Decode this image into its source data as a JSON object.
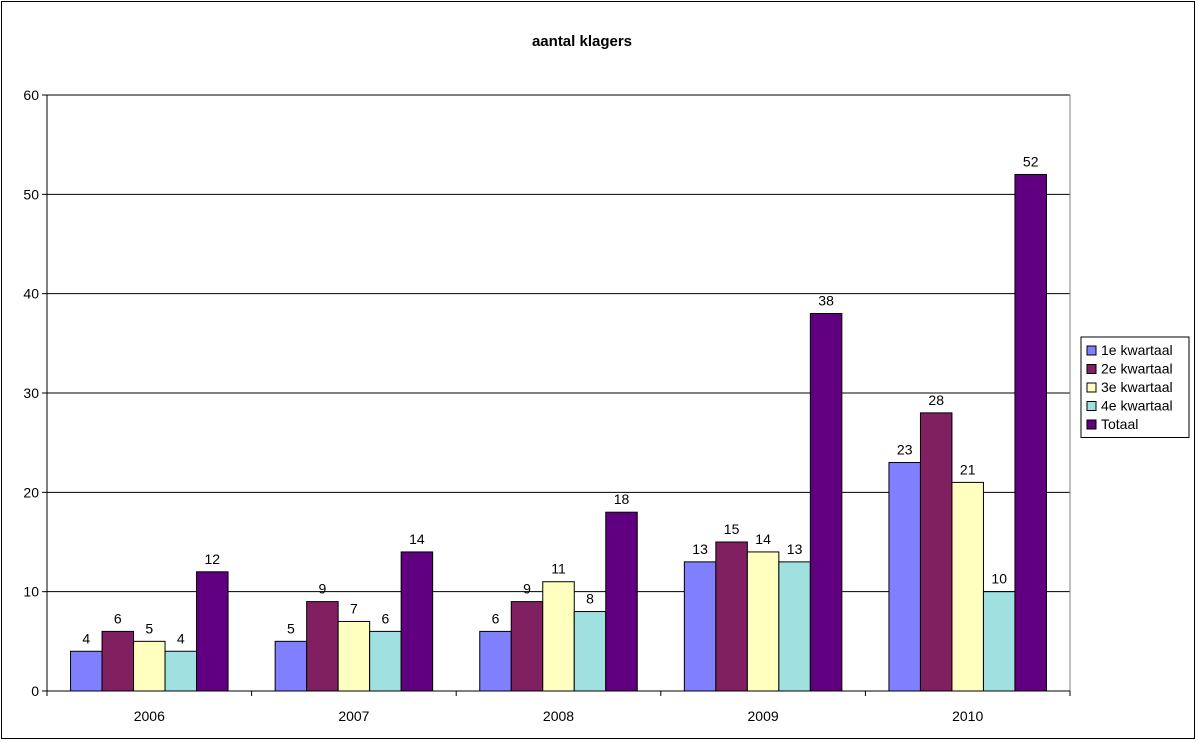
{
  "chart_data": {
    "type": "bar",
    "title": "aantal klagers",
    "xlabel": "",
    "ylabel": "",
    "categories": [
      "2006",
      "2007",
      "2008",
      "2009",
      "2010"
    ],
    "ylim": [
      0,
      60
    ],
    "yticks": [
      0,
      10,
      20,
      30,
      40,
      50,
      60
    ],
    "grid": true,
    "legend_position": "right",
    "series": [
      {
        "name": "1e kwartaal",
        "color": "#8080ff",
        "values": [
          4,
          5,
          6,
          13,
          23
        ]
      },
      {
        "name": "2e kwartaal",
        "color": "#802060",
        "values": [
          6,
          9,
          9,
          15,
          28
        ]
      },
      {
        "name": "3e kwartaal",
        "color": "#ffffc0",
        "values": [
          5,
          7,
          11,
          14,
          21
        ]
      },
      {
        "name": "4e kwartaal",
        "color": "#a0e0e0",
        "values": [
          4,
          6,
          8,
          13,
          10
        ]
      },
      {
        "name": "Totaal",
        "color": "#600080",
        "values": [
          12,
          14,
          18,
          38,
          52
        ]
      }
    ]
  }
}
